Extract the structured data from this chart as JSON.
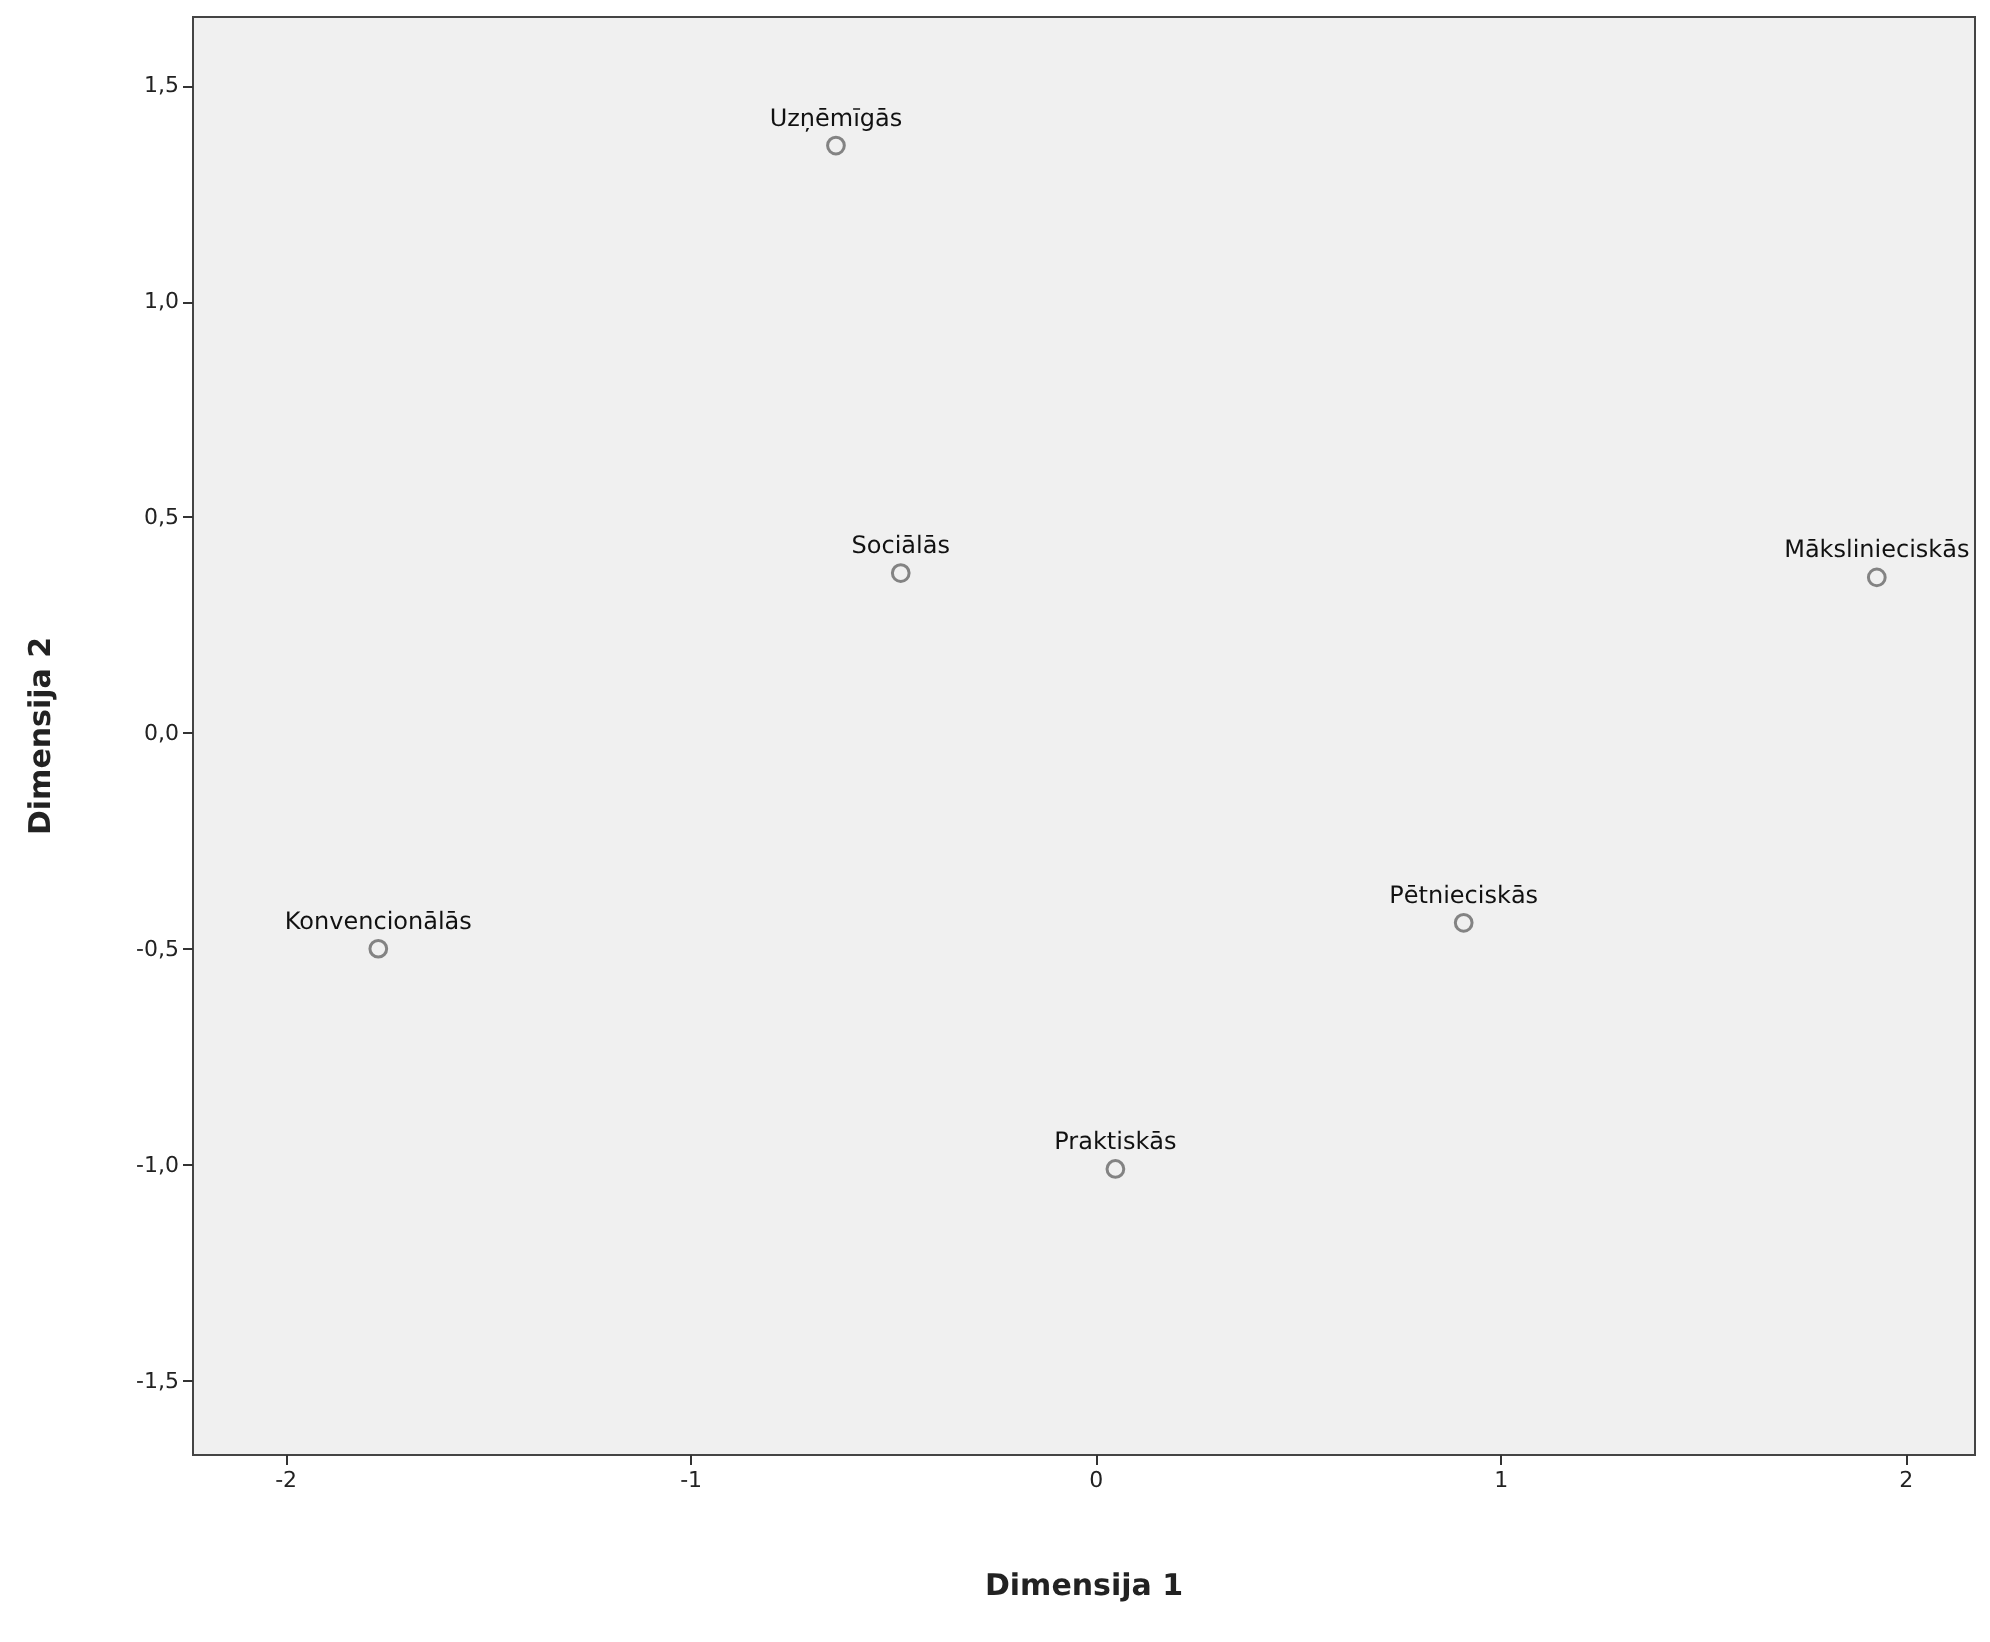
{
  "chart_data": {
    "type": "scatter",
    "xlabel": "Dimensija 1",
    "ylabel": "Dimensija 2",
    "marker": "circle",
    "xlim": [
      -2.23,
      2.17
    ],
    "ylim": [
      -1.67,
      1.66
    ],
    "xticks": [
      -2,
      -1,
      0,
      1,
      2
    ],
    "yticks": [
      {
        "value": -1.5,
        "label": "-1,5"
      },
      {
        "value": -1,
        "label": "-1,0"
      },
      {
        "value": -0.5,
        "label": "-0,5"
      },
      {
        "value": 0,
        "label": "0,0"
      },
      {
        "value": 0.5,
        "label": "0,5"
      },
      {
        "value": 1,
        "label": "1,0"
      },
      {
        "value": 1.5,
        "label": "1,5"
      }
    ],
    "series": [
      {
        "color": "#555555",
        "x": [
          -0.64,
          -0.48,
          1.93,
          0.91,
          -1.77,
          0.05
        ],
        "values": [
          1.36,
          0.37,
          0.36,
          -0.44,
          -0.5,
          -1.01
        ]
      }
    ],
    "annotations": [
      {
        "text": "Uzņēmīgās",
        "x": -0.64,
        "y": 1.36
      },
      {
        "text": "Sociālās",
        "x": -0.48,
        "y": 0.37
      },
      {
        "text": "Mākslinieciskās",
        "x": 1.93,
        "y": 0.36
      },
      {
        "text": "Pētnieciskās",
        "x": 0.91,
        "y": -0.44
      },
      {
        "text": "Konvencionālās",
        "x": -1.77,
        "y": -0.5
      },
      {
        "text": "Praktiskās",
        "x": 0.05,
        "y": -1.01
      }
    ]
  }
}
